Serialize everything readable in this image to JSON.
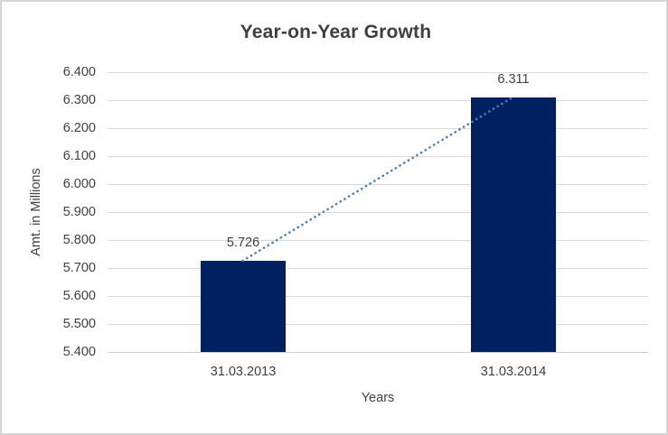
{
  "window": {
    "background_color": "#ffffff",
    "border_color": "#d6d6d6"
  },
  "chart_data": {
    "type": "bar",
    "title": "Year-on-Year Growth",
    "categories": [
      "31.03.2013",
      "31.03.2014"
    ],
    "values": [
      5.726,
      6.311
    ],
    "data_labels": [
      "5.726",
      "6.311"
    ],
    "xlabel": "Years",
    "ylabel": "Amt. in Millions",
    "ylim": [
      5.4,
      6.4
    ],
    "ytick_step": 0.1,
    "ytick_labels": [
      "6.400",
      "6.300",
      "6.200",
      "6.100",
      "6.000",
      "5.900",
      "5.800",
      "5.700",
      "5.600",
      "5.500",
      "5.400"
    ],
    "ytick_values": [
      6.4,
      6.3,
      6.2,
      6.1,
      6.0,
      5.9,
      5.8,
      5.7,
      5.6,
      5.5,
      5.4
    ],
    "grid": true,
    "legend": "none",
    "bar_color": "#002060",
    "gridline_color": "#d9d9d9",
    "axis_line_color": "#cfcfcf",
    "text_color": "#404040",
    "title_color": "#3f3f3f",
    "trendline": {
      "type": "linear",
      "style": "dotted",
      "color": "#4a7ebb",
      "from_value": 5.726,
      "to_value": 6.311
    }
  }
}
